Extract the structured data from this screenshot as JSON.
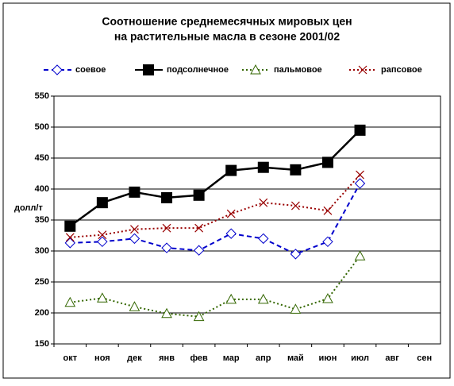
{
  "chart_data": {
    "type": "line",
    "title": [
      "Соотношение среднемесячных мировых  цен",
      "на растительные масла в сезоне 2001/02"
    ],
    "y_label": "долл/т",
    "categories": [
      "окт",
      "ноя",
      "дек",
      "янв",
      "фев",
      "мар",
      "апр",
      "май",
      "июн",
      "июл",
      "авг",
      "сен"
    ],
    "series": [
      {
        "name": "соевое",
        "color": "#0000cc",
        "dash": "6,4",
        "marker": "diamond",
        "values": [
          313,
          315,
          320,
          305,
          301,
          328,
          320,
          295,
          315,
          409,
          null,
          null
        ]
      },
      {
        "name": "подсолнечное",
        "color": "#000000",
        "dash": "none",
        "marker": "square",
        "values": [
          340,
          378,
          395,
          386,
          390,
          430,
          435,
          431,
          443,
          495,
          null,
          null
        ]
      },
      {
        "name": "пальмовое",
        "color": "#336600",
        "dash": "2,3",
        "marker": "triangle",
        "values": [
          217,
          224,
          210,
          199,
          194,
          222,
          222,
          206,
          223,
          292,
          null,
          null
        ]
      },
      {
        "name": "рапсовое",
        "color": "#990000",
        "dash": "2,3",
        "marker": "cross",
        "values": [
          322,
          326,
          335,
          337,
          337,
          360,
          378,
          373,
          365,
          423,
          null,
          null
        ]
      }
    ],
    "ylim": [
      150,
      550
    ],
    "yticks": [
      150,
      200,
      250,
      300,
      350,
      400,
      450,
      500,
      550
    ],
    "grid": true
  }
}
